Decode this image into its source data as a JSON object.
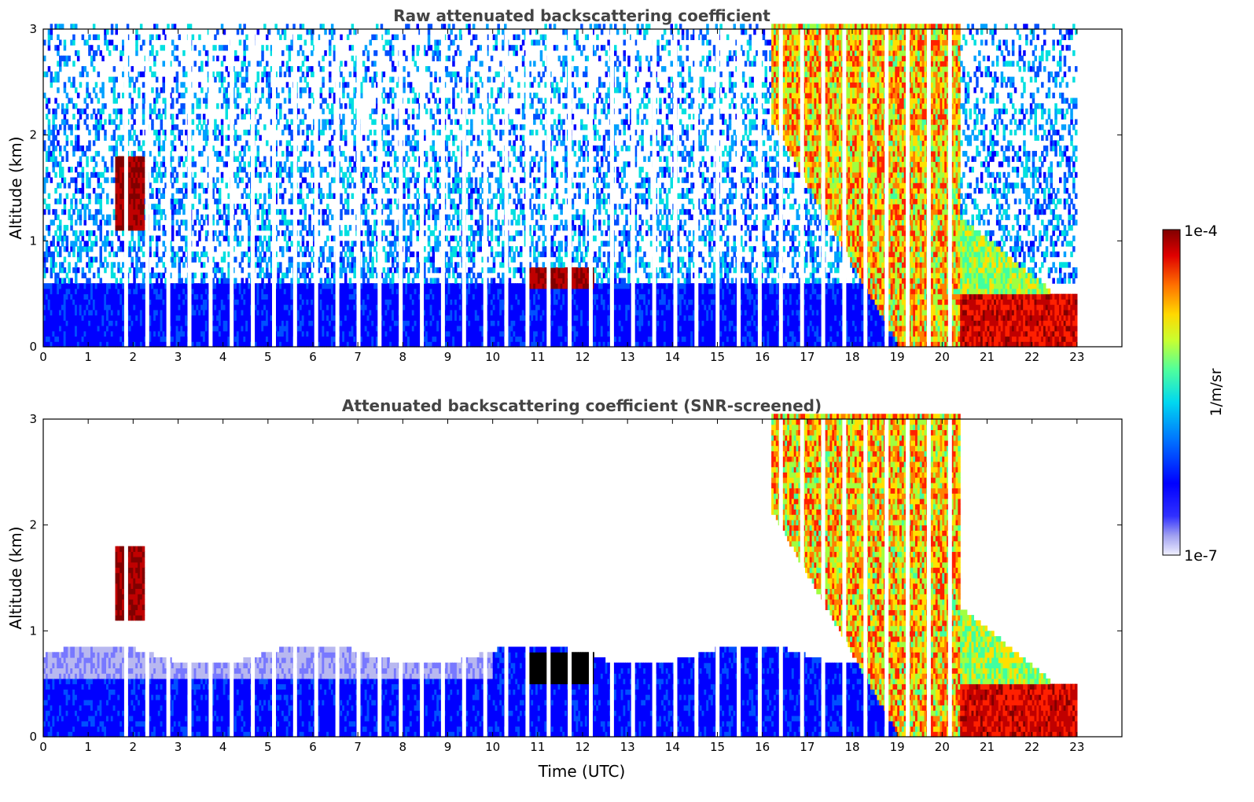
{
  "chart_data": [
    {
      "type": "heatmap",
      "title": "Raw attenuated backscattering coefficient",
      "xlabel": "",
      "ylabel": "Altitude (km)",
      "xlim": [
        0,
        24
      ],
      "ylim": [
        0,
        3
      ],
      "xticks": [
        "0",
        "1",
        "2",
        "3",
        "4",
        "5",
        "6",
        "7",
        "8",
        "9",
        "10",
        "11",
        "12",
        "13",
        "14",
        "15",
        "16",
        "17",
        "18",
        "19",
        "20",
        "21",
        "22",
        "23"
      ],
      "yticks": [
        "0",
        "1",
        "2",
        "3"
      ],
      "layers": [
        {
          "type": "noise",
          "x0": 0,
          "x1": 23,
          "y0": 0.6,
          "y1": 3.0,
          "density": 0.55
        },
        {
          "type": "boundary_layer",
          "x0": 0,
          "x1": 20.4,
          "top": 0.55
        },
        {
          "type": "cloud",
          "x0": 10.75,
          "x1": 12.25,
          "y0": 0.5,
          "y1": 0.75,
          "level": "high"
        },
        {
          "type": "cloud",
          "x0": 1.6,
          "x1": 2.2,
          "y0": 1.1,
          "y1": 1.8,
          "level": "high"
        },
        {
          "type": "precipitation",
          "x0": 16.2,
          "x1": 23,
          "level": "mid-high"
        },
        {
          "type": "precipitation_base",
          "x0": 20.4,
          "x1": 23,
          "y0": 0,
          "y1": 0.45,
          "level": "high"
        }
      ]
    },
    {
      "type": "heatmap",
      "title": "Attenuated backscattering coefficient (SNR-screened)",
      "xlabel": "Time (UTC)",
      "ylabel": "Altitude (km)",
      "xlim": [
        0,
        24
      ],
      "ylim": [
        0,
        3
      ],
      "xticks": [
        "0",
        "1",
        "2",
        "3",
        "4",
        "5",
        "6",
        "7",
        "8",
        "9",
        "10",
        "11",
        "12",
        "13",
        "14",
        "15",
        "16",
        "17",
        "18",
        "19",
        "20",
        "21",
        "22",
        "23"
      ],
      "yticks": [
        "0",
        "1",
        "2",
        "3"
      ],
      "layers": [
        {
          "type": "boundary_layer",
          "x0": 0,
          "x1": 20.4,
          "top": 0.75
        },
        {
          "type": "cloud",
          "x0": 10.75,
          "x1": 12.25,
          "y0": 0.45,
          "y1": 0.8,
          "level": "saturated"
        },
        {
          "type": "cloud",
          "x0": 1.6,
          "x1": 2.2,
          "y0": 1.1,
          "y1": 1.8,
          "level": "high"
        },
        {
          "type": "precipitation",
          "x0": 16.2,
          "x1": 23,
          "level": "mid-high"
        },
        {
          "type": "precipitation_base",
          "x0": 20.4,
          "x1": 23,
          "y0": 0,
          "y1": 0.45,
          "level": "high"
        }
      ]
    }
  ],
  "colorbar": {
    "max_label": "1e-4",
    "min_label": "1e-7",
    "unit_label": "1/m/sr",
    "colors": [
      "#eeeeff",
      "#b8b8f0",
      "#7878ff",
      "#0000ff",
      "#0050ff",
      "#00a0ff",
      "#00e0e0",
      "#40ffa0",
      "#a0ff40",
      "#ffe000",
      "#ff8000",
      "#ff2000",
      "#c00000",
      "#800000"
    ]
  }
}
